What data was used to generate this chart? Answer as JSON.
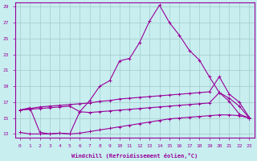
{
  "bg_color": "#c8eef0",
  "grid_color": "#a0ccc8",
  "line_color": "#990099",
  "spine_color": "#990099",
  "xlabel": "Windchill (Refroidissement éolien,°C)",
  "xlim": [
    -0.5,
    23.5
  ],
  "ylim": [
    12.5,
    29.5
  ],
  "yticks": [
    13,
    15,
    17,
    19,
    21,
    23,
    25,
    27,
    29
  ],
  "ytick_labels": [
    "13",
    "15",
    "17",
    "19",
    "21",
    "23",
    "25",
    "27",
    "29"
  ],
  "xticks": [
    0,
    1,
    2,
    3,
    4,
    5,
    6,
    7,
    8,
    9,
    10,
    11,
    12,
    13,
    14,
    15,
    16,
    17,
    18,
    19,
    20,
    21,
    22,
    23
  ],
  "series1_x": [
    0,
    1,
    2,
    3,
    4,
    5,
    6,
    7,
    8,
    9,
    10,
    11,
    12,
    13,
    14,
    15,
    16,
    17,
    18,
    19,
    20,
    21,
    22,
    23
  ],
  "series1_y": [
    16.0,
    16.3,
    13.2,
    13.0,
    13.1,
    13.0,
    15.8,
    17.2,
    19.0,
    19.7,
    22.2,
    22.5,
    24.5,
    27.2,
    29.2,
    27.0,
    25.4,
    23.5,
    22.3,
    20.2,
    18.2,
    17.1,
    15.5,
    15.0
  ],
  "series2_x": [
    0,
    1,
    2,
    3,
    4,
    5,
    6,
    7,
    8,
    9,
    10,
    11,
    12,
    13,
    14,
    15,
    16,
    17,
    18,
    19,
    20,
    21,
    22,
    23
  ],
  "series2_y": [
    16.0,
    16.2,
    16.4,
    16.5,
    16.6,
    16.7,
    16.8,
    16.9,
    17.1,
    17.2,
    17.4,
    17.5,
    17.6,
    17.7,
    17.8,
    17.9,
    18.0,
    18.1,
    18.2,
    18.3,
    20.2,
    18.0,
    17.0,
    15.1
  ],
  "series3_x": [
    0,
    1,
    2,
    3,
    4,
    5,
    6,
    7,
    8,
    9,
    10,
    11,
    12,
    13,
    14,
    15,
    16,
    17,
    18,
    19,
    20,
    21,
    22,
    23
  ],
  "series3_y": [
    16.0,
    16.1,
    16.2,
    16.3,
    16.4,
    16.5,
    15.8,
    15.7,
    15.8,
    15.9,
    16.0,
    16.1,
    16.2,
    16.3,
    16.4,
    16.5,
    16.6,
    16.7,
    16.8,
    16.9,
    18.2,
    17.5,
    16.5,
    15.0
  ],
  "series4_x": [
    0,
    1,
    2,
    3,
    4,
    5,
    6,
    7,
    8,
    9,
    10,
    11,
    12,
    13,
    14,
    15,
    16,
    17,
    18,
    19,
    20,
    21,
    22,
    23
  ],
  "series4_y": [
    13.2,
    13.0,
    13.0,
    13.0,
    13.1,
    13.0,
    13.1,
    13.3,
    13.5,
    13.7,
    13.9,
    14.1,
    14.3,
    14.5,
    14.7,
    14.9,
    15.0,
    15.1,
    15.2,
    15.3,
    15.4,
    15.4,
    15.3,
    15.0
  ]
}
